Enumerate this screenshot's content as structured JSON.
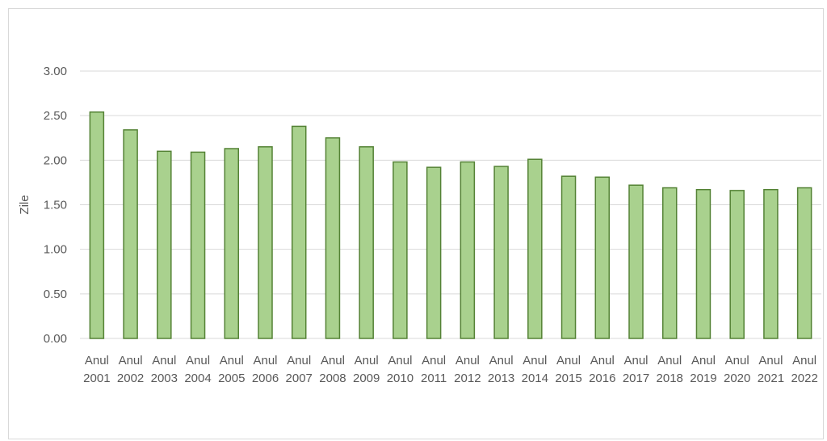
{
  "chart_data": {
    "type": "bar",
    "title": "",
    "xlabel": "",
    "ylabel": "Zile",
    "ylim": [
      0,
      3
    ],
    "yticks": [
      "0.00",
      "0.50",
      "1.00",
      "1.50",
      "2.00",
      "2.50",
      "3.00"
    ],
    "grid": true,
    "legend": "none",
    "categories": [
      [
        "Anul",
        "2001"
      ],
      [
        "Anul",
        "2002"
      ],
      [
        "Anul",
        "2003"
      ],
      [
        "Anul",
        "2004"
      ],
      [
        "Anul",
        "2005"
      ],
      [
        "Anul",
        "2006"
      ],
      [
        "Anul",
        "2007"
      ],
      [
        "Anul",
        "2008"
      ],
      [
        "Anul",
        "2009"
      ],
      [
        "Anul",
        "2010"
      ],
      [
        "Anul",
        "2011"
      ],
      [
        "Anul",
        "2012"
      ],
      [
        "Anul",
        "2013"
      ],
      [
        "Anul",
        "2014"
      ],
      [
        "Anul",
        "2015"
      ],
      [
        "Anul",
        "2016"
      ],
      [
        "Anul",
        "2017"
      ],
      [
        "Anul",
        "2018"
      ],
      [
        "Anul",
        "2019"
      ],
      [
        "Anul",
        "2020"
      ],
      [
        "Anul",
        "2021"
      ],
      [
        "Anul",
        "2022"
      ]
    ],
    "series": [
      {
        "values": [
          2.54,
          2.34,
          2.1,
          2.09,
          2.13,
          2.15,
          2.38,
          2.25,
          2.15,
          1.98,
          1.92,
          1.98,
          1.93,
          2.01,
          1.82,
          1.81,
          1.72,
          1.69,
          1.67,
          1.66,
          1.67,
          1.69
        ]
      }
    ],
    "colors": {
      "bar_fill": "#a9d18e",
      "bar_stroke": "#548235",
      "grid": "#d9d9d9",
      "text": "#595959"
    }
  }
}
